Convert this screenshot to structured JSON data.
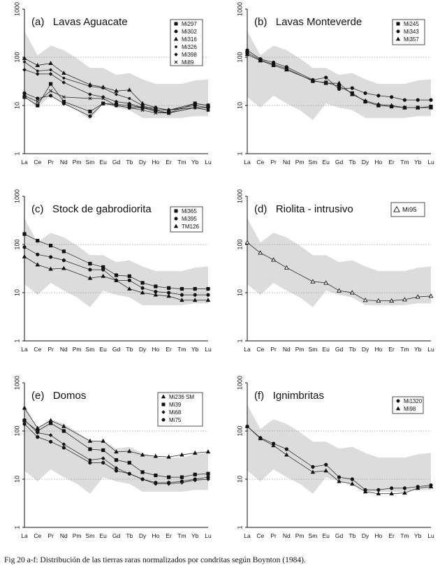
{
  "caption": "Fig 20 a-f: Distribución de las tierras raras normalizados por condritas según Boynton (1984).",
  "chart_data": [
    {
      "type": "line",
      "title": "(a)   Lavas Aguacate",
      "yscale": "log",
      "ylim": [
        1,
        1000
      ],
      "y_ticks": [
        "1",
        "10",
        "100",
        "1000"
      ],
      "categories": [
        "La",
        "Ce",
        "Pr",
        "Nd",
        "Pm",
        "Sm",
        "Eu",
        "Gd",
        "Tb",
        "Dy",
        "Ho",
        "Er",
        "Tm",
        "Yb",
        "Lu"
      ],
      "legend_position": "top-right",
      "envelope": {
        "upper": [
          350,
          110,
          175,
          140,
          95,
          60,
          60,
          43,
          47,
          35,
          28,
          28,
          28,
          33,
          35
        ],
        "lower": [
          15,
          9,
          16,
          11,
          8,
          5,
          11,
          9,
          8,
          5.5,
          5.5,
          5.5,
          5.5,
          6,
          6
        ]
      },
      "series": [
        {
          "name": "Mi297",
          "marker": "square",
          "values": [
            15,
            10,
            28,
            12,
            null,
            7.5,
            11,
            10.5,
            10,
            9,
            8,
            7,
            null,
            11,
            10
          ]
        },
        {
          "name": "Mi302",
          "marker": "circle",
          "values": [
            18,
            14,
            16,
            11,
            null,
            6,
            11,
            10,
            9,
            9,
            9,
            8,
            null,
            10,
            9
          ]
        },
        {
          "name": "Mi316",
          "marker": "triangle",
          "values": [
            95,
            68,
            75,
            47,
            null,
            27,
            24,
            20,
            21,
            11,
            9,
            8,
            null,
            11,
            10
          ]
        },
        {
          "name": "Mi326",
          "marker": "asterisk",
          "values": [
            80,
            52,
            55,
            37,
            null,
            25,
            23,
            17,
            14,
            10,
            8,
            8,
            null,
            9,
            9
          ]
        },
        {
          "name": "Mi398",
          "marker": "diamond",
          "values": [
            55,
            45,
            45,
            30,
            null,
            17,
            15,
            12,
            11,
            9,
            7.5,
            7,
            null,
            9,
            8
          ]
        },
        {
          "name": "Mi89",
          "marker": "cross",
          "values": [
            16,
            12,
            20,
            15,
            null,
            14,
            14,
            10,
            9,
            8,
            7,
            7,
            null,
            9,
            8
          ]
        }
      ]
    },
    {
      "type": "line",
      "title": "(b)   Lavas Monteverde",
      "yscale": "log",
      "ylim": [
        1,
        1000
      ],
      "y_ticks": [
        "1",
        "10",
        "100",
        "1000"
      ],
      "categories": [
        "La",
        "Ce",
        "Pr",
        "Nd",
        "Pm",
        "Sm",
        "Eu",
        "Gd",
        "Tb",
        "Dy",
        "Ho",
        "Er",
        "Tm",
        "Yb",
        "Lu"
      ],
      "legend_position": "top-right",
      "envelope": {
        "upper": [
          350,
          110,
          175,
          140,
          95,
          60,
          60,
          43,
          47,
          35,
          28,
          28,
          28,
          33,
          35
        ],
        "lower": [
          15,
          9,
          16,
          11,
          8,
          5,
          11,
          9,
          8,
          5.5,
          5.5,
          5.5,
          5.5,
          6,
          6
        ]
      },
      "series": [
        {
          "name": "Mi245",
          "marker": "square",
          "values": [
            125,
            88,
            72,
            58,
            null,
            32,
            30,
            25,
            18,
            12,
            10,
            9.5,
            9,
            9,
            9.5
          ]
        },
        {
          "name": "Mi343",
          "marker": "circle",
          "values": [
            140,
            92,
            78,
            63,
            null,
            34,
            38,
            22,
            23,
            18,
            16,
            15,
            13,
            13,
            13
          ]
        },
        {
          "name": "Mi357",
          "marker": "triangle",
          "values": [
            115,
            85,
            68,
            55,
            null,
            33,
            29,
            29,
            17,
            12.5,
            10.5,
            10,
            9,
            9,
            9
          ]
        }
      ]
    },
    {
      "type": "line",
      "title": "(c)   Stock de gabrodiorita",
      "yscale": "log",
      "ylim": [
        1,
        1000
      ],
      "y_ticks": [
        "1",
        "10",
        "100",
        "1000"
      ],
      "categories": [
        "La",
        "Ce",
        "Pr",
        "Nd",
        "Pm",
        "Sm",
        "Eu",
        "Gd",
        "Tb",
        "Dy",
        "Ho",
        "Er",
        "Tm",
        "Yb",
        "Lu"
      ],
      "legend_position": "top-right",
      "envelope": {
        "upper": [
          350,
          110,
          175,
          140,
          95,
          60,
          60,
          43,
          47,
          35,
          28,
          28,
          28,
          33,
          35
        ],
        "lower": [
          15,
          9,
          16,
          11,
          8,
          5,
          11,
          9,
          8,
          5.5,
          5.5,
          5.5,
          5.5,
          6,
          6
        ]
      },
      "series": [
        {
          "name": "Mi365",
          "marker": "square",
          "values": [
            165,
            120,
            95,
            72,
            null,
            40,
            34,
            23,
            22,
            16,
            13.5,
            12.5,
            12,
            12,
            12
          ]
        },
        {
          "name": "Mi395",
          "marker": "circle",
          "values": [
            88,
            62,
            55,
            47,
            null,
            30,
            30,
            18,
            18,
            12.5,
            10.5,
            10,
            9,
            9,
            9
          ]
        },
        {
          "name": "TM126",
          "marker": "triangle",
          "values": [
            56,
            38,
            31,
            32,
            null,
            20,
            22,
            18,
            12,
            10,
            9,
            8.5,
            7,
            7,
            7
          ]
        }
      ]
    },
    {
      "type": "line",
      "title": "(d)   Riolita - intrusivo",
      "yscale": "log",
      "ylim": [
        1,
        1000
      ],
      "y_ticks": [
        "1",
        "10",
        "100",
        "1000"
      ],
      "categories": [
        "La",
        "Ce",
        "Pr",
        "Nd",
        "Pm",
        "Sm",
        "Eu",
        "Gd",
        "Tb",
        "Dy",
        "Ho",
        "Er",
        "Tm",
        "Yb",
        "Lu"
      ],
      "legend_position": "top-right",
      "envelope": {
        "upper": [
          350,
          110,
          175,
          140,
          95,
          60,
          60,
          43,
          47,
          35,
          28,
          28,
          28,
          33,
          35
        ],
        "lower": [
          15,
          9,
          16,
          11,
          8,
          5,
          11,
          9,
          8,
          5.5,
          5.5,
          5.5,
          5.5,
          6,
          6
        ]
      },
      "series": [
        {
          "name": "Mi95",
          "marker": "triangle-open",
          "values": [
            110,
            67,
            48,
            33,
            null,
            17,
            16,
            11,
            10,
            7,
            6.8,
            6.8,
            7.2,
            8.2,
            8.5
          ]
        }
      ]
    },
    {
      "type": "line",
      "title": "(e)   Domos",
      "yscale": "log",
      "ylim": [
        1,
        1000
      ],
      "y_ticks": [
        "1",
        "10",
        "100",
        "1000"
      ],
      "categories": [
        "La",
        "Ce",
        "Pr",
        "Nd",
        "Pm",
        "Sm",
        "Eu",
        "Gd",
        "Tb",
        "Dy",
        "Ho",
        "Er",
        "Tm",
        "Yb",
        "Lu"
      ],
      "legend_position": "top-right",
      "envelope": {
        "upper": [
          350,
          110,
          175,
          140,
          95,
          60,
          60,
          43,
          47,
          35,
          28,
          28,
          28,
          33,
          35
        ],
        "lower": [
          15,
          9,
          16,
          11,
          8,
          5,
          11,
          9,
          8,
          5.5,
          5.5,
          5.5,
          5.5,
          6,
          6
        ]
      },
      "series": [
        {
          "name": "Mi236 SM",
          "marker": "triangle",
          "values": [
            300,
            115,
            165,
            125,
            null,
            62,
            62,
            37,
            38,
            32,
            30,
            29,
            32,
            35,
            37
          ]
        },
        {
          "name": "Mi39",
          "marker": "square",
          "values": [
            165,
            100,
            145,
            100,
            null,
            42,
            40,
            25,
            22,
            14,
            12,
            11,
            11,
            12.5,
            13
          ]
        },
        {
          "name": "Mi68",
          "marker": "diamond",
          "values": [
            170,
            92,
            82,
            53,
            null,
            25,
            27,
            17,
            13,
            10,
            8,
            8,
            8.5,
            9.5,
            10
          ]
        },
        {
          "name": "Mi75",
          "marker": "circle",
          "values": [
            140,
            75,
            60,
            45,
            null,
            22,
            22,
            15,
            13,
            10,
            8.5,
            8.5,
            9,
            10,
            11
          ]
        }
      ]
    },
    {
      "type": "line",
      "title": "(f)   Ignimbritas",
      "yscale": "log",
      "ylim": [
        1,
        1000
      ],
      "y_ticks": [
        "1",
        "10",
        "100",
        "1000"
      ],
      "categories": [
        "La",
        "Ce",
        "Pr",
        "Nd",
        "Pm",
        "Sm",
        "Eu",
        "Gd",
        "Tb",
        "Dy",
        "Ho",
        "Er",
        "Tm",
        "Yb",
        "Lu"
      ],
      "legend_position": "top-right",
      "envelope": {
        "upper": [
          350,
          110,
          175,
          140,
          95,
          60,
          60,
          43,
          47,
          35,
          28,
          28,
          28,
          33,
          35
        ],
        "lower": [
          15,
          9,
          16,
          11,
          8,
          5,
          11,
          9,
          8,
          5.5,
          5.5,
          5.5,
          5.5,
          6,
          6
        ]
      },
      "series": [
        {
          "name": "Mi1320",
          "marker": "circle",
          "values": [
            125,
            72,
            55,
            42,
            null,
            18,
            20,
            11,
            10,
            6,
            6,
            6.5,
            6.5,
            7,
            7.5
          ]
        },
        {
          "name": "Mi98",
          "marker": "triangle",
          "values": [
            125,
            70,
            50,
            32,
            null,
            14,
            15,
            9,
            8,
            5.5,
            5,
            5,
            5.2,
            6.5,
            7
          ]
        }
      ]
    }
  ]
}
